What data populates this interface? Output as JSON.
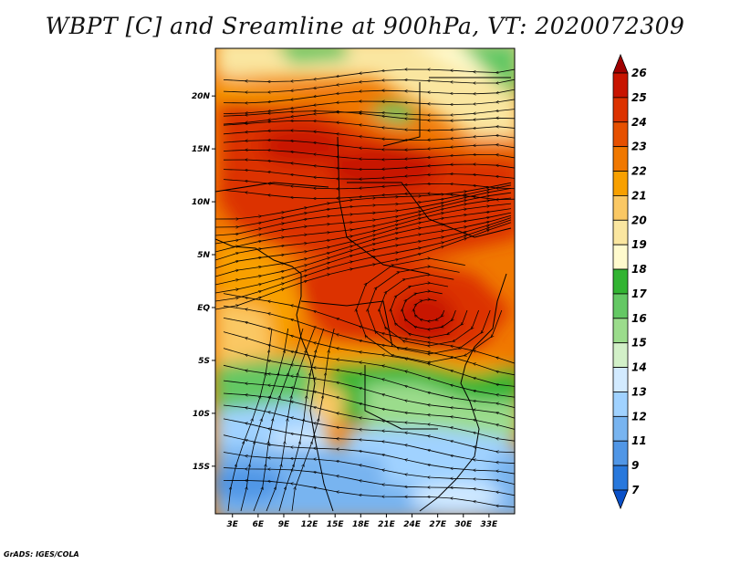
{
  "title": "WBPT [C] and Sreamline at 900hPa, VT: 2020072309",
  "credit": "GrADS: IGES/COLA",
  "map": {
    "lat_ticks": [
      "20N",
      "15N",
      "10N",
      "5N",
      "EQ",
      "5S",
      "10S",
      "15S"
    ],
    "lon_ticks": [
      "3E",
      "6E",
      "9E",
      "12E",
      "15E",
      "18E",
      "21E",
      "24E",
      "27E",
      "30E",
      "33E"
    ],
    "lon_range": [
      1,
      36
    ],
    "lat_range": [
      -19.5,
      24.5
    ]
  },
  "colorbar": {
    "labels": [
      "26",
      "25",
      "24",
      "23",
      "22",
      "21",
      "20",
      "19",
      "18",
      "17",
      "16",
      "15",
      "14",
      "13",
      "12",
      "11",
      "9",
      "7"
    ],
    "colors": [
      "#a00000",
      "#c81400",
      "#dc3200",
      "#e65000",
      "#f07800",
      "#f8a000",
      "#fac864",
      "#fae6a0",
      "#fffacd",
      "#32b432",
      "#64c864",
      "#9bdc8c",
      "#d2f0c8",
      "#d2eaff",
      "#a0d2ff",
      "#78b4f0",
      "#5096e6",
      "#2878dc",
      "#0a50c8"
    ]
  }
}
